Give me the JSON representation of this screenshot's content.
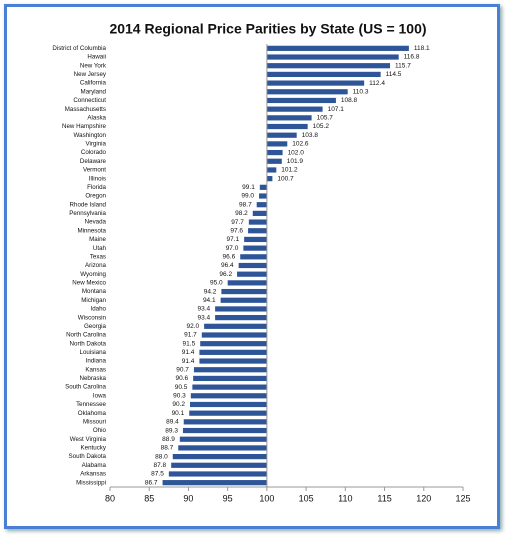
{
  "chart_data": {
    "type": "hbar",
    "title": "2014 Regional Price Parities by State (US = 100)",
    "categories": [
      "District of Columbia",
      "Hawaii",
      "New York",
      "New Jersey",
      "California",
      "Maryland",
      "Connecticut",
      "Massachusetts",
      "Alaska",
      "New Hampshire",
      "Washington",
      "Virginia",
      "Colorado",
      "Delaware",
      "Vermont",
      "Illinois",
      "Florida",
      "Oregon",
      "Rhode Island",
      "Pennsylvania",
      "Nevada",
      "Minnesota",
      "Maine",
      "Utah",
      "Texas",
      "Arizona",
      "Wyoming",
      "New Mexico",
      "Montana",
      "Michigan",
      "Idaho",
      "Wisconsin",
      "Georgia",
      "North Carolina",
      "North Dakota",
      "Louisiana",
      "Indiana",
      "Kansas",
      "Nebraska",
      "South Carolina",
      "Iowa",
      "Tennessee",
      "Oklahoma",
      "Missouri",
      "Ohio",
      "West Virginia",
      "Kentucky",
      "South Dakota",
      "Alabama",
      "Arkansas",
      "Mississippi"
    ],
    "values": [
      118.1,
      116.8,
      115.7,
      114.5,
      112.4,
      110.3,
      108.8,
      107.1,
      105.7,
      105.2,
      103.8,
      102.6,
      102.0,
      101.9,
      101.2,
      100.7,
      99.1,
      99.0,
      98.7,
      98.2,
      97.7,
      97.6,
      97.1,
      97.0,
      96.6,
      96.4,
      96.2,
      95.0,
      94.2,
      94.1,
      93.4,
      93.4,
      92.0,
      91.7,
      91.5,
      91.4,
      91.4,
      90.7,
      90.6,
      90.5,
      90.3,
      90.2,
      90.1,
      89.4,
      89.3,
      88.9,
      88.7,
      88.0,
      87.8,
      87.5,
      86.7
    ],
    "value_labels": [
      "118.1",
      "116.8",
      "115.7",
      "114.5",
      "112.4",
      "110.3",
      "108.8",
      "107.1",
      "105.7",
      "105.2",
      "103.8",
      "102.6",
      "102.0",
      "101.9",
      "101.2",
      "100.7",
      "99.1",
      "99.0",
      "98.7",
      "98.2",
      "97.7",
      "97.6",
      "97.1",
      "97.0",
      "96.6",
      "96.4",
      "96.2",
      "95.0",
      "94.2",
      "94.1",
      "93.4",
      "93.4",
      "92.0",
      "91.7",
      "91.5",
      "91.4",
      "91.4",
      "90.7",
      "90.6",
      "90.5",
      "90.3",
      "90.2",
      "90.1",
      "89.4",
      "89.3",
      "88.9",
      "88.7",
      "88.0",
      "87.8",
      "87.5",
      "86.7"
    ],
    "color": "#2e5597",
    "bar_base": 100,
    "xlim": [
      80,
      125
    ],
    "xticks": [
      80,
      85,
      90,
      95,
      100,
      105,
      110,
      115,
      120,
      125
    ]
  }
}
